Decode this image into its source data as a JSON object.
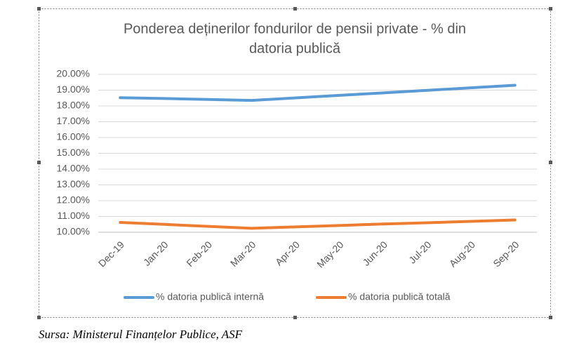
{
  "chart_data": {
    "type": "line",
    "title": [
      "Ponderea deținerilor fondurilor de pensii private - % din",
      "datoria publică"
    ],
    "categories": [
      "Dec-19",
      "Jan-20",
      "Feb-20",
      "Mar-20",
      "Apr-20",
      "May-20",
      "Jun-20",
      "Jul-20",
      "Aug-20",
      "Sep-20"
    ],
    "series": [
      {
        "name": "% datoria publică internă",
        "color": "#5b9bd5",
        "values": [
          18.52,
          18.47,
          18.41,
          18.35,
          18.51,
          18.67,
          18.83,
          18.99,
          19.15,
          19.31
        ]
      },
      {
        "name": "% datoria publică totală",
        "color": "#ed7d31",
        "values": [
          10.62,
          10.5,
          10.37,
          10.25,
          10.34,
          10.43,
          10.52,
          10.6,
          10.69,
          10.78
        ]
      }
    ],
    "ylim": [
      10,
      20
    ],
    "yticks": [
      {
        "value": 10,
        "label": "10.00%"
      },
      {
        "value": 11,
        "label": "11.00%"
      },
      {
        "value": 12,
        "label": "12.00%"
      },
      {
        "value": 13,
        "label": "13.00%"
      },
      {
        "value": 14,
        "label": "14.00%"
      },
      {
        "value": 15,
        "label": "15.00%"
      },
      {
        "value": 16,
        "label": "16.00%"
      },
      {
        "value": 17,
        "label": "17.00%"
      },
      {
        "value": 18,
        "label": "18.00%"
      },
      {
        "value": 19,
        "label": "19.00%"
      },
      {
        "value": 20,
        "label": "20.00%"
      }
    ],
    "grid": true,
    "legend": "bottom"
  },
  "source": "Sursa: Ministerul Finanțelor Publice, ASF"
}
